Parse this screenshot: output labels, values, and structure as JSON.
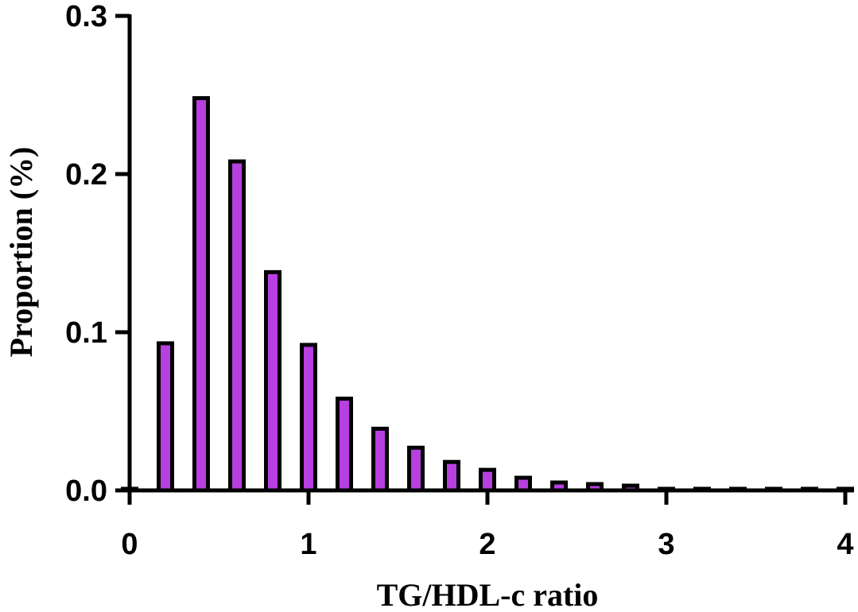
{
  "chart_data": {
    "type": "bar",
    "title": "",
    "xlabel": "TG/HDL-c ratio",
    "ylabel": "Proportion (%)",
    "xlim": [
      0,
      4
    ],
    "ylim": [
      0,
      0.3
    ],
    "x_ticks": [
      "0",
      "1",
      "2",
      "3",
      "4"
    ],
    "y_ticks": [
      "0.0",
      "0.1",
      "0.2",
      "0.3"
    ],
    "grid": false,
    "bar_color": "#b83fe0",
    "bar_edge_color": "#000000",
    "x": [
      0,
      0.2,
      0.4,
      0.6,
      0.8,
      1.0,
      1.2,
      1.4,
      1.6,
      1.8,
      2.0,
      2.2,
      2.4,
      2.6,
      2.8,
      3.0,
      3.2,
      3.4,
      3.6,
      3.8,
      4.0
    ],
    "values": [
      0.0,
      0.093,
      0.248,
      0.208,
      0.138,
      0.092,
      0.058,
      0.039,
      0.027,
      0.018,
      0.013,
      0.008,
      0.005,
      0.004,
      0.003,
      0.001,
      0.001,
      0.001,
      0.001,
      0.001,
      0.001
    ]
  }
}
